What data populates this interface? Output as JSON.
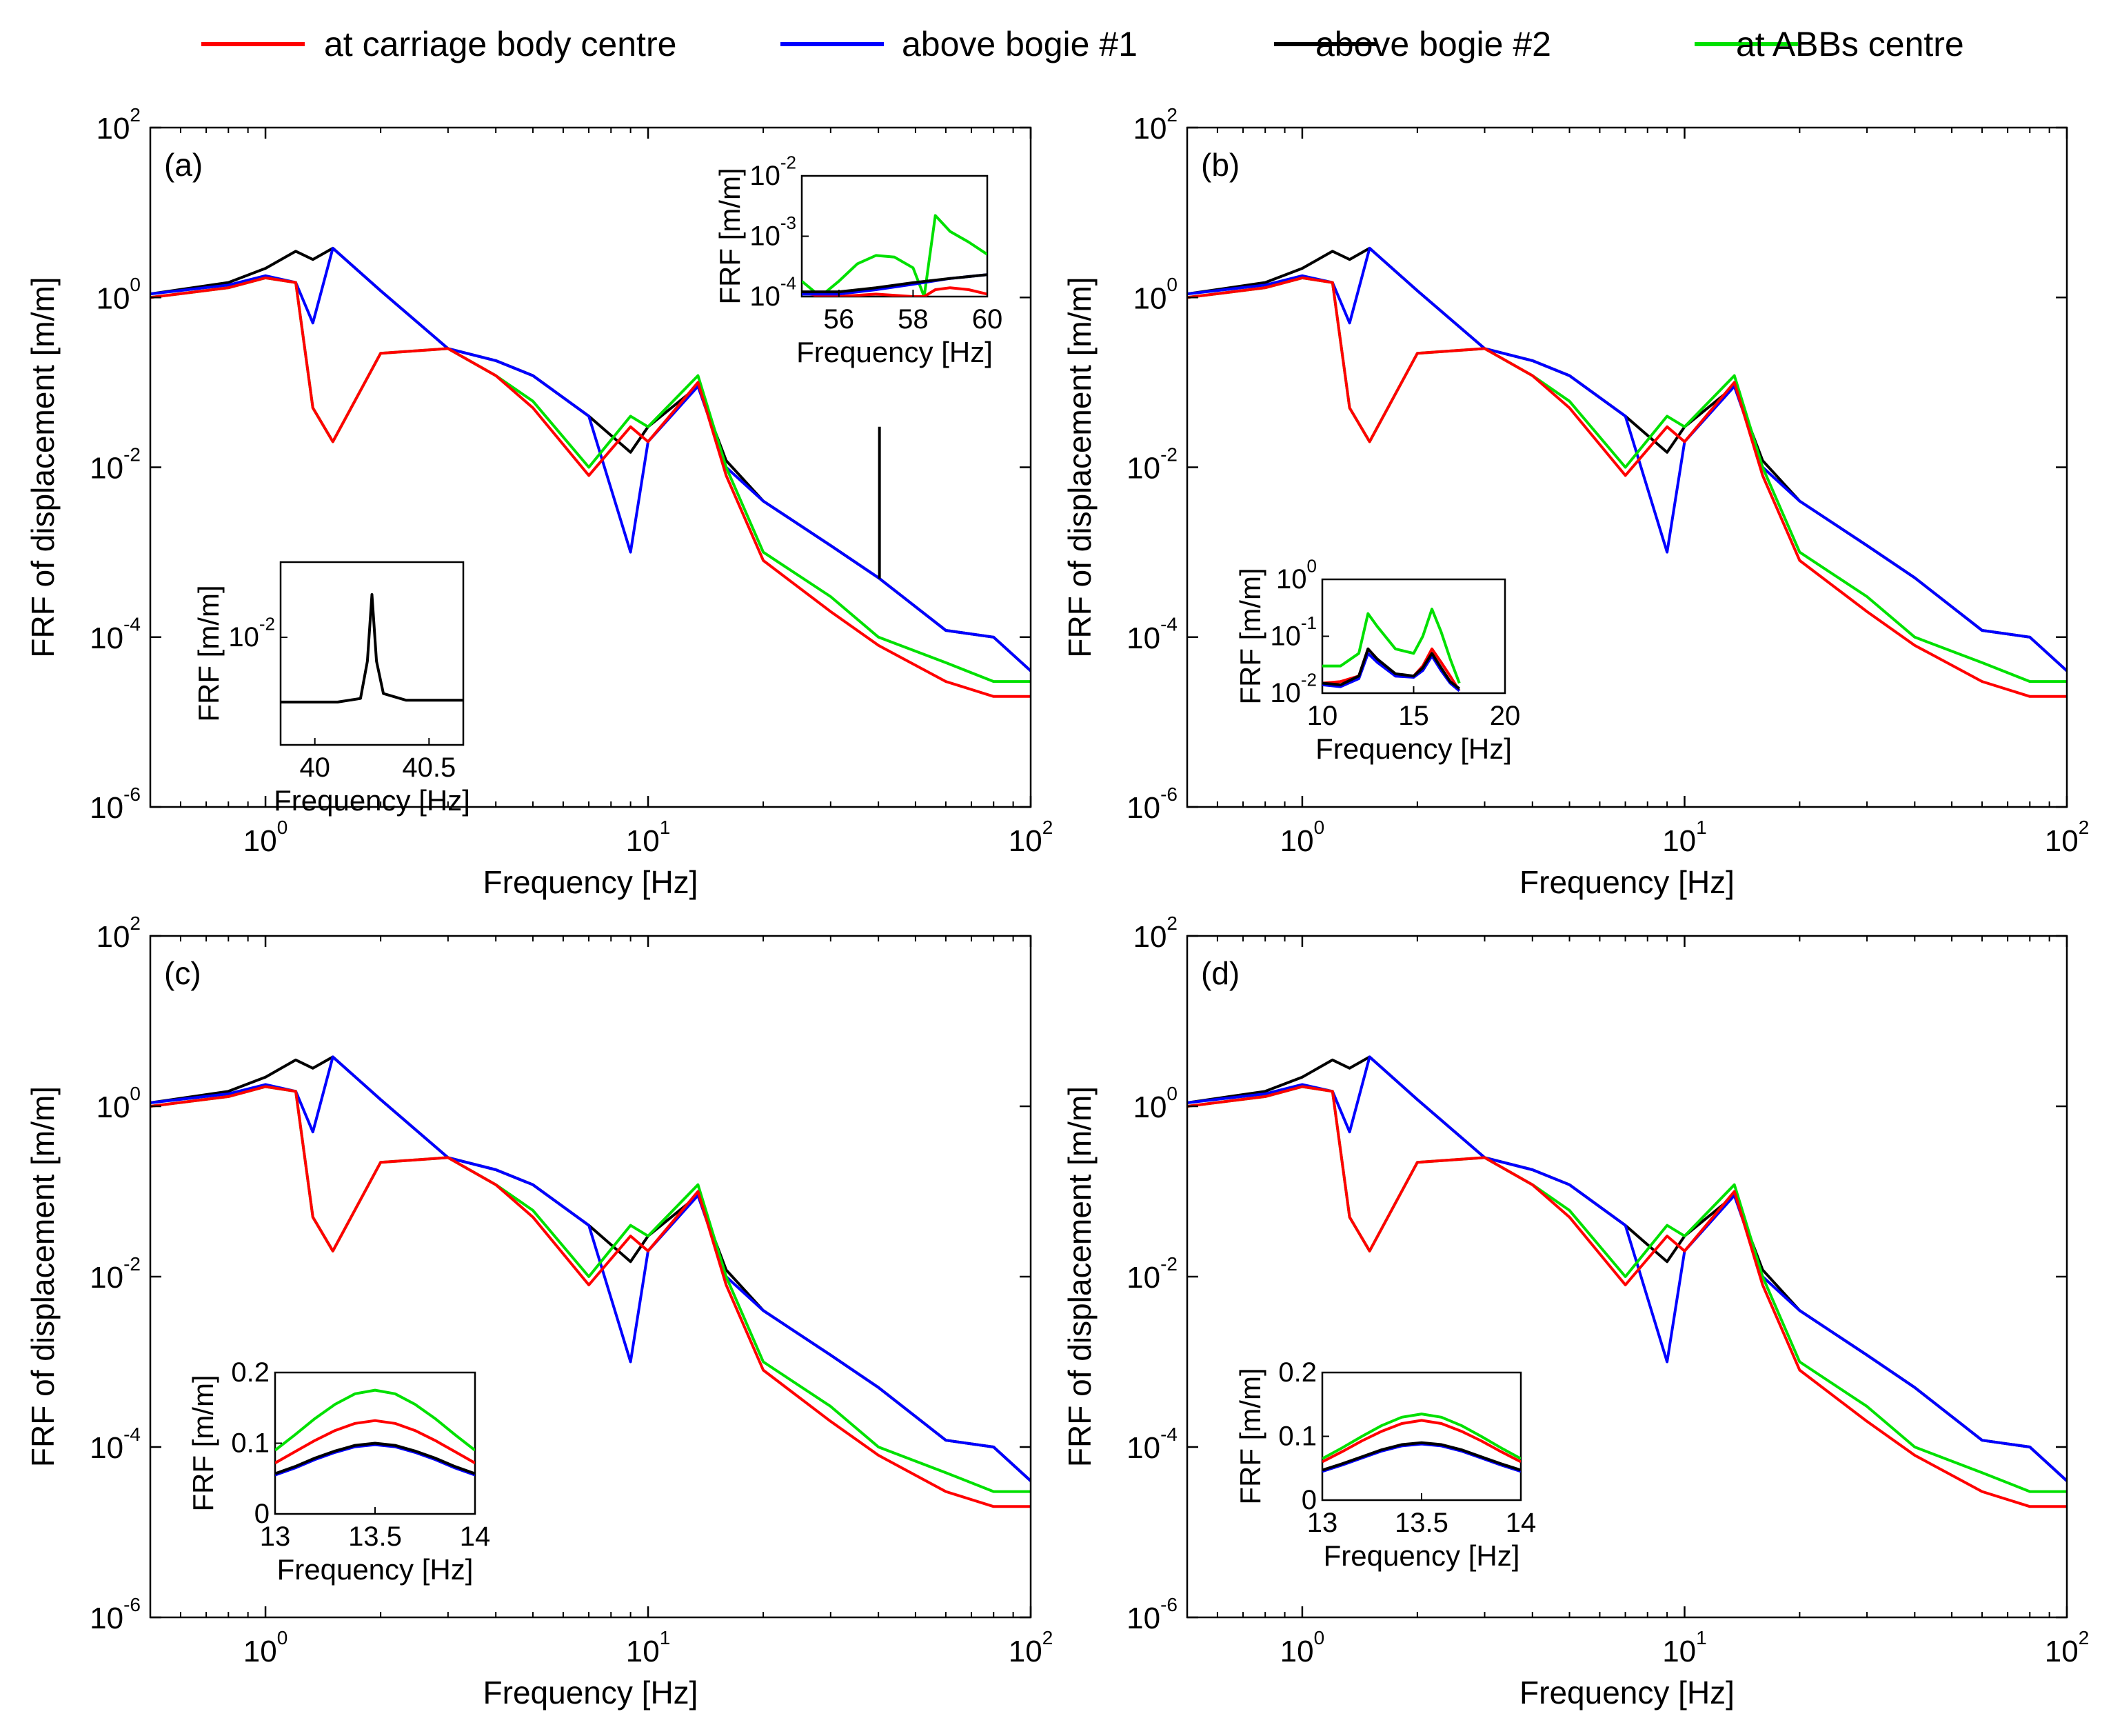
{
  "chart_data": {
    "type": "line",
    "legend": {
      "placement": "top",
      "entries": [
        {
          "label": "at carriage body centre",
          "color": "#ff0000"
        },
        {
          "label": "above bogie #1",
          "color": "#0000ff"
        },
        {
          "label": "above bogie #2",
          "color": "#000000"
        },
        {
          "label": "at ABBs centre",
          "color": "#00e000"
        }
      ]
    },
    "panels": [
      {
        "label": "(a)",
        "xlabel": "Frequency [Hz]",
        "ylabel": "FRF of displacement [m/m]",
        "xscale": "log",
        "yscale": "log",
        "xlim": [
          0.5,
          100
        ],
        "ylim": [
          1e-06,
          100
        ],
        "xticks": [
          "10^0",
          "10^1",
          "10^2"
        ],
        "yticks": [
          "10^-6",
          "10^-4",
          "10^-2",
          "10^0",
          "10^2"
        ],
        "sharp_peaks": [
          {
            "f": 40.25,
            "top": 0.03,
            "color": "#000000"
          }
        ],
        "inset": {
          "placement": "top-right",
          "xlabel": "Frequency [Hz]",
          "ylabel": "FRF  [m/m]",
          "xscale": "linear",
          "yscale": "log",
          "xlim": [
            55,
            60
          ],
          "ylim": [
            0.0001,
            0.01
          ],
          "xticks": [
            "56",
            "58",
            "60"
          ],
          "yticks": [
            "10^-4",
            "10^-3",
            "10^-2"
          ],
          "series": [
            {
              "name": "at ABBs centre",
              "color": "#00e000",
              "x": [
                55.0,
                55.5,
                56.0,
                56.5,
                57.0,
                57.5,
                58.0,
                58.3,
                58.6,
                59.0,
                59.5,
                60.0
              ],
              "y": [
                0.00018,
                0.0001,
                0.00018,
                0.00035,
                0.00048,
                0.00045,
                0.0003,
                0.0001,
                0.0022,
                0.0012,
                0.0008,
                0.0005
              ]
            },
            {
              "name": "at carriage body centre",
              "color": "#ff0000",
              "x": [
                55.0,
                55.5,
                56.0,
                57.0,
                58.0,
                58.3,
                58.6,
                59.0,
                59.5,
                60.0
              ],
              "y": [
                0.00012,
                0.0001,
                0.0001,
                0.00011,
                0.0001,
                0.0001,
                0.00013,
                0.00014,
                0.00013,
                0.00011
              ]
            },
            {
              "name": "above bogie #1",
              "color": "#0000ff",
              "x": [
                55.0,
                56.0,
                57.0,
                58.0,
                59.0,
                60.0
              ],
              "y": [
                0.00011,
                0.00011,
                0.00013,
                0.00016,
                0.0002,
                0.00023
              ]
            },
            {
              "name": "above bogie #2",
              "color": "#000000",
              "x": [
                55.0,
                56.0,
                57.0,
                58.0,
                59.0,
                60.0
              ],
              "y": [
                0.00012,
                0.00012,
                0.00014,
                0.00017,
                0.0002,
                0.00023
              ]
            }
          ]
        },
        "inset2": {
          "placement": "bottom-left",
          "xlabel": "Frequency [Hz]",
          "ylabel": "FRF  [m/m]",
          "xscale": "linear",
          "yscale": "log",
          "xlim": [
            39.85,
            40.65
          ],
          "ylim": [
            0.001,
            0.05
          ],
          "xticks": [
            "40",
            "40.5"
          ],
          "yticks": [
            "10^-2"
          ],
          "series": [
            {
              "name": "above bogie #2",
              "color": "#000000",
              "x": [
                39.85,
                40.1,
                40.2,
                40.23,
                40.25,
                40.27,
                40.3,
                40.4,
                40.65
              ],
              "y": [
                0.0025,
                0.0025,
                0.0027,
                0.006,
                0.025,
                0.006,
                0.003,
                0.0026,
                0.0026
              ]
            }
          ]
        }
      },
      {
        "label": "(b)",
        "xlabel": "Frequency [Hz]",
        "ylabel": "FRF of displacement [m/m]",
        "xscale": "log",
        "yscale": "log",
        "xlim": [
          0.5,
          100
        ],
        "ylim": [
          1e-06,
          100
        ],
        "xticks": [
          "10^0",
          "10^1",
          "10^2"
        ],
        "yticks": [
          "10^-6",
          "10^-4",
          "10^-2",
          "10^0",
          "10^2"
        ],
        "inset": {
          "placement": "bottom-left",
          "xlabel": "Frequency [Hz]",
          "ylabel": "FRF  [m/m]",
          "xscale": "linear",
          "yscale": "log",
          "xlim": [
            10,
            20
          ],
          "ylim": [
            0.01,
            1
          ],
          "xticks": [
            "10",
            "15",
            "20"
          ],
          "yticks": [
            "10^-2",
            "10^-1",
            "10^0"
          ],
          "series": [
            {
              "name": "at ABBs centre",
              "color": "#00e000",
              "x": [
                10,
                11,
                12,
                12.5,
                13,
                14,
                15,
                15.5,
                16,
                16.5,
                17,
                17.5
              ],
              "y": [
                0.03,
                0.03,
                0.05,
                0.25,
                0.15,
                0.06,
                0.05,
                0.1,
                0.3,
                0.12,
                0.04,
                0.015
              ]
            },
            {
              "name": "at carriage body centre",
              "color": "#ff0000",
              "x": [
                10,
                11,
                12,
                12.5,
                13,
                14,
                15,
                15.5,
                16,
                16.5,
                17,
                17.5
              ],
              "y": [
                0.015,
                0.016,
                0.02,
                0.06,
                0.04,
                0.02,
                0.02,
                0.03,
                0.06,
                0.035,
                0.02,
                0.011
              ]
            },
            {
              "name": "above bogie #1",
              "color": "#0000ff",
              "x": [
                10,
                11,
                12,
                12.5,
                13,
                14,
                15,
                15.5,
                16,
                16.5,
                17,
                17.5
              ],
              "y": [
                0.014,
                0.013,
                0.018,
                0.05,
                0.035,
                0.02,
                0.019,
                0.025,
                0.045,
                0.025,
                0.015,
                0.011
              ]
            },
            {
              "name": "above bogie #2",
              "color": "#000000",
              "x": [
                10,
                11,
                12,
                12.5,
                13,
                14,
                15,
                15.5,
                16,
                16.5,
                17,
                17.5
              ],
              "y": [
                0.015,
                0.014,
                0.02,
                0.06,
                0.04,
                0.022,
                0.02,
                0.028,
                0.05,
                0.028,
                0.016,
                0.012
              ]
            }
          ]
        }
      },
      {
        "label": "(c)",
        "xlabel": "Frequency [Hz]",
        "ylabel": "FRF of displacement [m/m]",
        "xscale": "log",
        "yscale": "log",
        "xlim": [
          0.5,
          100
        ],
        "ylim": [
          1e-06,
          100
        ],
        "xticks": [
          "10^0",
          "10^1",
          "10^2"
        ],
        "yticks": [
          "10^-6",
          "10^-4",
          "10^-2",
          "10^0",
          "10^2"
        ],
        "inset": {
          "placement": "bottom-left",
          "xlabel": "Frequency [Hz]",
          "ylabel": "FRF  [m/m]",
          "xscale": "linear",
          "yscale": "linear",
          "xlim": [
            13,
            14
          ],
          "ylim": [
            0,
            0.2
          ],
          "xticks": [
            "13",
            "13.5",
            "14"
          ],
          "yticks": [
            "0",
            "0.1",
            "0.2"
          ],
          "series": [
            {
              "name": "at ABBs centre",
              "color": "#00e000",
              "x": [
                13,
                13.1,
                13.2,
                13.3,
                13.4,
                13.5,
                13.6,
                13.7,
                13.8,
                13.9,
                14
              ],
              "y": [
                0.09,
                0.112,
                0.135,
                0.155,
                0.17,
                0.175,
                0.17,
                0.155,
                0.135,
                0.112,
                0.09
              ]
            },
            {
              "name": "at carriage body centre",
              "color": "#ff0000",
              "x": [
                13,
                13.1,
                13.2,
                13.3,
                13.4,
                13.5,
                13.6,
                13.7,
                13.8,
                13.9,
                14
              ],
              "y": [
                0.072,
                0.088,
                0.104,
                0.118,
                0.128,
                0.132,
                0.128,
                0.118,
                0.104,
                0.088,
                0.072
              ]
            },
            {
              "name": "above bogie #1",
              "color": "#0000ff",
              "x": [
                13,
                13.1,
                13.2,
                13.3,
                13.4,
                13.5,
                13.6,
                13.7,
                13.8,
                13.9,
                14
              ],
              "y": [
                0.055,
                0.065,
                0.077,
                0.087,
                0.095,
                0.098,
                0.095,
                0.087,
                0.077,
                0.065,
                0.055
              ]
            },
            {
              "name": "above bogie #2",
              "color": "#000000",
              "x": [
                13,
                13.1,
                13.2,
                13.3,
                13.4,
                13.5,
                13.6,
                13.7,
                13.8,
                13.9,
                14
              ],
              "y": [
                0.057,
                0.067,
                0.079,
                0.089,
                0.097,
                0.1,
                0.097,
                0.089,
                0.079,
                0.067,
                0.057
              ]
            }
          ]
        }
      },
      {
        "label": "(d)",
        "xlabel": "Frequency [Hz]",
        "ylabel": "FRF of displacement [m/m]",
        "xscale": "log",
        "yscale": "log",
        "xlim": [
          0.5,
          100
        ],
        "ylim": [
          1e-06,
          100
        ],
        "xticks": [
          "10^0",
          "10^1",
          "10^2"
        ],
        "yticks": [
          "10^-6",
          "10^-4",
          "10^-2",
          "10^0",
          "10^2"
        ],
        "inset": {
          "placement": "bottom-left",
          "xlabel": "Frequency [Hz]",
          "ylabel": "FRF  [m/m]",
          "xscale": "linear",
          "yscale": "linear",
          "xlim": [
            13,
            14
          ],
          "ylim": [
            0,
            0.2
          ],
          "xticks": [
            "13",
            "13.5",
            "14"
          ],
          "yticks": [
            "0",
            "0.1",
            "0.2"
          ],
          "series": [
            {
              "name": "at ABBs centre",
              "color": "#00e000",
              "x": [
                13,
                13.1,
                13.2,
                13.3,
                13.4,
                13.5,
                13.6,
                13.7,
                13.8,
                13.9,
                14
              ],
              "y": [
                0.065,
                0.082,
                0.1,
                0.117,
                0.13,
                0.135,
                0.13,
                0.117,
                0.1,
                0.082,
                0.065
              ]
            },
            {
              "name": "at carriage body centre",
              "color": "#ff0000",
              "x": [
                13,
                13.1,
                13.2,
                13.3,
                13.4,
                13.5,
                13.6,
                13.7,
                13.8,
                13.9,
                14
              ],
              "y": [
                0.06,
                0.076,
                0.093,
                0.108,
                0.12,
                0.125,
                0.12,
                0.108,
                0.093,
                0.076,
                0.06
              ]
            },
            {
              "name": "above bogie #1",
              "color": "#0000ff",
              "x": [
                13,
                13.1,
                13.2,
                13.3,
                13.4,
                13.5,
                13.6,
                13.7,
                13.8,
                13.9,
                14
              ],
              "y": [
                0.045,
                0.055,
                0.066,
                0.077,
                0.085,
                0.088,
                0.085,
                0.077,
                0.066,
                0.055,
                0.045
              ]
            },
            {
              "name": "above bogie #2",
              "color": "#000000",
              "x": [
                13,
                13.1,
                13.2,
                13.3,
                13.4,
                13.5,
                13.6,
                13.7,
                13.8,
                13.9,
                14
              ],
              "y": [
                0.047,
                0.057,
                0.068,
                0.079,
                0.087,
                0.09,
                0.087,
                0.079,
                0.068,
                0.057,
                0.047
              ]
            }
          ]
        }
      }
    ],
    "main_series": {
      "note": "main FRF curves (approximate), log-log, shared shape across panels",
      "x": [
        0.5,
        0.8,
        1.0,
        1.2,
        1.33,
        1.5,
        2.0,
        3.0,
        4.0,
        5.0,
        7.0,
        9.0,
        10.0,
        13.5,
        16.0,
        20.0,
        30.0,
        40.0,
        60.0,
        80.0,
        100.0
      ],
      "above bogie #2": [
        1.1,
        1.5,
        2.2,
        3.5,
        2.8,
        3.8,
        1.2,
        0.25,
        0.18,
        0.12,
        0.04,
        0.015,
        0.03,
        0.09,
        0.012,
        0.004,
        0.0012,
        0.0005,
        0.00012,
        0.0001,
        4e-05
      ],
      "above bogie #1": [
        1.1,
        1.4,
        1.8,
        1.5,
        0.5,
        3.8,
        1.2,
        0.25,
        0.18,
        0.12,
        0.04,
        0.001,
        0.02,
        0.09,
        0.01,
        0.004,
        0.0012,
        0.0005,
        0.00012,
        0.0001,
        4e-05
      ],
      "at carriage body centre": [
        1.0,
        1.3,
        1.7,
        1.5,
        0.05,
        0.02,
        0.22,
        0.25,
        0.12,
        0.05,
        0.008,
        0.03,
        0.02,
        0.1,
        0.008,
        0.0008,
        0.0002,
        8e-05,
        3e-05,
        2e-05,
        2e-05
      ],
      "at ABBs centre": [
        1.0,
        1.3,
        1.7,
        1.5,
        0.05,
        0.02,
        0.22,
        0.25,
        0.12,
        0.06,
        0.01,
        0.04,
        0.03,
        0.12,
        0.01,
        0.001,
        0.0003,
        0.0001,
        5e-05,
        3e-05,
        3e-05
      ]
    }
  }
}
